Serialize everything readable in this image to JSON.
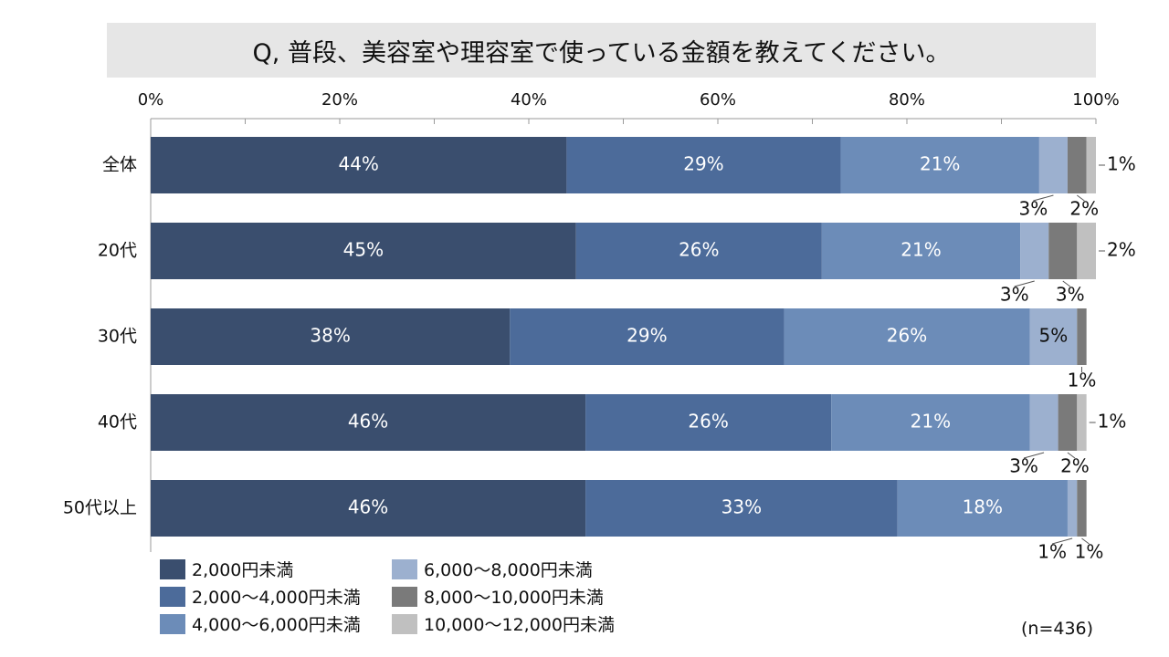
{
  "title": "Q, 普段、美容室や理容室で使っている金額を教えてください。",
  "note": "(n=436)",
  "colors": [
    "#3a4e6e",
    "#4c6b9a",
    "#6c8cb8",
    "#9cb0cf",
    "#7a7a7a",
    "#c0c0c0"
  ],
  "chart_data": {
    "type": "bar",
    "orientation": "horizontal",
    "stacked": "percent",
    "xlim": [
      0,
      100
    ],
    "xticks": [
      "0%",
      "20%",
      "40%",
      "60%",
      "80%",
      "100%"
    ],
    "categories": [
      "全体",
      "20代",
      "30代",
      "40代",
      "50代以上"
    ],
    "series": [
      {
        "name": "2,000円未満",
        "values": [
          44,
          45,
          38,
          46,
          46
        ],
        "labels": [
          "44%",
          "45%",
          "38%",
          "46%",
          "46%"
        ]
      },
      {
        "name": "2,000～4,000円未満",
        "values": [
          29,
          26,
          29,
          26,
          33
        ],
        "labels": [
          "29%",
          "26%",
          "29%",
          "26%",
          "33%"
        ]
      },
      {
        "name": "4,000～6,000円未満",
        "values": [
          21,
          21,
          26,
          21,
          18
        ],
        "labels": [
          "21%",
          "21%",
          "26%",
          "21%",
          "18%"
        ]
      },
      {
        "name": "6,000～8,000円未満",
        "values": [
          3,
          3,
          5,
          3,
          1
        ],
        "labels": [
          "3%",
          "3%",
          "5%",
          "3%",
          "1%"
        ]
      },
      {
        "name": "8,000～10,000円未満",
        "values": [
          2,
          3,
          1,
          2,
          1
        ],
        "labels": [
          "2%",
          "3%",
          "1%",
          "2%",
          "1%"
        ]
      },
      {
        "name": "10,000～12,000円未満",
        "values": [
          1,
          2,
          0,
          1,
          0
        ],
        "labels": [
          "1%",
          "2%",
          "",
          "1%",
          ""
        ]
      }
    ],
    "legend": "bottom-left",
    "grid": false
  }
}
